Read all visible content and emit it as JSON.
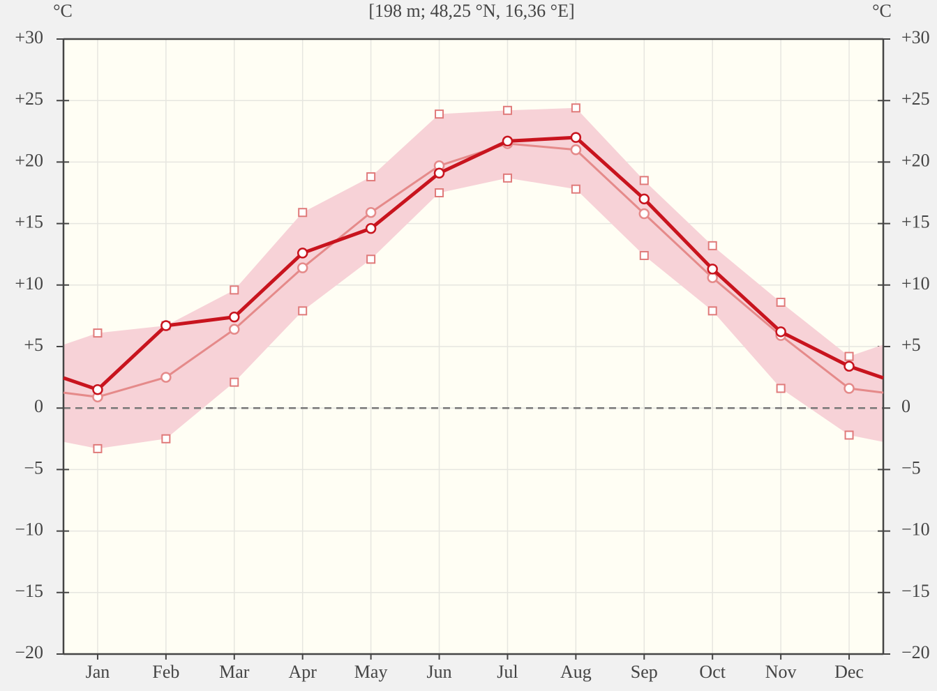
{
  "chart_data": {
    "type": "line",
    "title": "[198 m; 48,25 °N, 16,36 °E]",
    "y_label": "°C",
    "y2_label": "°C",
    "categories": [
      "Jan",
      "Feb",
      "Mar",
      "Apr",
      "May",
      "Jun",
      "Jul",
      "Aug",
      "Sep",
      "Oct",
      "Nov",
      "Dec"
    ],
    "series": [
      {
        "color": "#e58a8a",
        "width": 3,
        "values": [
          0.9,
          2.5,
          6.4,
          11.4,
          15.9,
          19.7,
          21.5,
          21.0,
          15.8,
          10.6,
          5.9,
          1.6
        ]
      },
      {
        "color": "#c8141e",
        "width": 5,
        "values": [
          1.5,
          6.7,
          7.4,
          12.6,
          14.6,
          19.1,
          21.7,
          22.0,
          17.0,
          11.3,
          6.2,
          3.4
        ]
      }
    ],
    "band": {
      "color": "#f7d2d7",
      "marker_color": "#e07a7a",
      "upper": [
        6.1,
        6.7,
        9.6,
        15.9,
        18.8,
        23.9,
        24.2,
        24.4,
        18.5,
        13.2,
        8.6,
        4.2
      ],
      "lower": [
        -3.3,
        -2.5,
        2.1,
        7.9,
        12.1,
        17.5,
        18.7,
        17.8,
        12.4,
        7.9,
        1.6,
        -2.2
      ]
    },
    "ylim": [
      -20,
      30
    ],
    "yticks": [
      {
        "value": -20,
        "label": "−20"
      },
      {
        "value": -15,
        "label": "−15"
      },
      {
        "value": -10,
        "label": "−10"
      },
      {
        "value": -5,
        "label": "−5"
      },
      0,
      {
        "value": 5,
        "label": "+5"
      },
      {
        "value": 10,
        "label": "+10"
      },
      {
        "value": 15,
        "label": "+15"
      },
      {
        "value": 20,
        "label": "+20"
      },
      {
        "value": 25,
        "label": "+25"
      },
      {
        "value": 30,
        "label": "+30"
      }
    ],
    "y2lim": [
      -20,
      30
    ],
    "y2ticks": [
      {
        "value": -20,
        "label": "−20"
      },
      {
        "value": -15,
        "label": "−15"
      },
      {
        "value": -10,
        "label": "−10"
      },
      {
        "value": -5,
        "label": "−5"
      },
      0,
      {
        "value": 5,
        "label": "+5"
      },
      {
        "value": 10,
        "label": "+10"
      },
      {
        "value": 15,
        "label": "+15"
      },
      {
        "value": 20,
        "label": "+20"
      },
      {
        "value": 25,
        "label": "+25"
      },
      {
        "value": 30,
        "label": "+30"
      }
    ],
    "grid": true,
    "zero_line": true
  }
}
